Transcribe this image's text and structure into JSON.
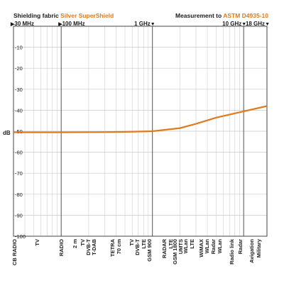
{
  "header": {
    "left_prefix": "Shielding fabric ",
    "left_accent": "Silver SuperShield",
    "right_prefix": "Measurement to ",
    "right_accent": "ASTM D4935-10",
    "accent_color": "#e07a1f"
  },
  "frequency_markers": [
    {
      "label": "30 MHz",
      "arrow": "right"
    },
    {
      "label": "100 MHz",
      "arrow": "right"
    },
    {
      "label": "1 GHz",
      "arrow": "left"
    },
    {
      "label": "10 GHz",
      "arrow": "left"
    },
    {
      "label": "18 GHz",
      "arrow": "left"
    }
  ],
  "chart_data": {
    "type": "line",
    "title": "",
    "xlabel": "",
    "ylabel": "dB",
    "x_scale": "log",
    "xlim": [
      "30 MHz",
      "18 GHz"
    ],
    "ylim": [
      0,
      -100
    ],
    "y_ticks": [
      -10,
      -20,
      -30,
      -40,
      -50,
      -60,
      -70,
      -80,
      -90,
      -100
    ],
    "grid": true,
    "line_color": "#e07a1f",
    "series": [
      {
        "x": [
          "30 MHz",
          "100 MHz",
          "300 MHz",
          "500 MHz",
          "1 GHz",
          "2 GHz",
          "3 GHz",
          "5 GHz",
          "8 GHz",
          "18 GHz"
        ],
        "values": [
          -50.5,
          -50.5,
          -50.4,
          -50.3,
          -50.0,
          -48.5,
          -46.5,
          -43.5,
          -41.5,
          -38.0
        ]
      }
    ],
    "category_labels": [
      "CB RADIO",
      "TV",
      "RADIO",
      "2 m",
      "TV",
      "DVB-T",
      "T-DAB",
      "TETRA",
      "70 cm",
      "TV",
      "DVB-T",
      "LTE",
      "GSM 900",
      "RADAR",
      "LTE",
      "GSM 1800",
      "UMTS",
      "WLan",
      "LTE",
      "WiMAX",
      "WLan",
      "Radar",
      "WLan",
      "Radio link",
      "Radar",
      "Avigation",
      "Military"
    ]
  }
}
